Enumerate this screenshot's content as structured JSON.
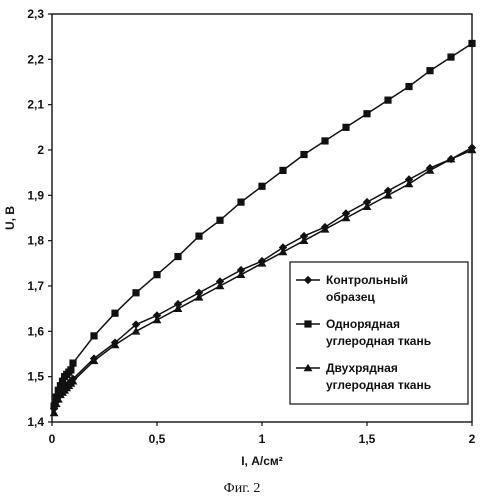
{
  "chart_data": {
    "type": "line",
    "xlabel": "I, А/см²",
    "ylabel": "U, В",
    "xlim": [
      0,
      2
    ],
    "ylim": [
      1.4,
      2.3
    ],
    "x_ticks": [
      "0",
      "0,5",
      "1",
      "1,5",
      "2"
    ],
    "x_tick_values": [
      0,
      0.5,
      1,
      1.5,
      2
    ],
    "y_ticks": [
      "1,4",
      "1,5",
      "1,6",
      "1,7",
      "1,8",
      "1,9",
      "2",
      "2,1",
      "2,2",
      "2,3"
    ],
    "y_tick_values": [
      1.4,
      1.5,
      1.6,
      1.7,
      1.8,
      1.9,
      2.0,
      2.1,
      2.2,
      2.3
    ],
    "grid": false,
    "legend_position": "lower-right",
    "series": [
      {
        "name_lines": [
          "Контрольный",
          "образец"
        ],
        "marker": "diamond",
        "x": [
          0.01,
          0.02,
          0.03,
          0.04,
          0.05,
          0.06,
          0.07,
          0.08,
          0.09,
          0.1,
          0.2,
          0.3,
          0.4,
          0.5,
          0.6,
          0.7,
          0.8,
          0.9,
          1.0,
          1.1,
          1.2,
          1.3,
          1.4,
          1.5,
          1.6,
          1.7,
          1.8,
          1.9,
          2.0
        ],
        "y": [
          1.43,
          1.445,
          1.455,
          1.465,
          1.47,
          1.475,
          1.48,
          1.485,
          1.49,
          1.495,
          1.54,
          1.575,
          1.615,
          1.635,
          1.66,
          1.685,
          1.71,
          1.735,
          1.755,
          1.785,
          1.81,
          1.83,
          1.86,
          1.885,
          1.91,
          1.935,
          1.96,
          1.98,
          2.005
        ]
      },
      {
        "name_lines": [
          "Однорядная",
          "углеродная ткань"
        ],
        "marker": "square",
        "x": [
          0.01,
          0.02,
          0.03,
          0.04,
          0.05,
          0.06,
          0.07,
          0.08,
          0.09,
          0.1,
          0.2,
          0.3,
          0.4,
          0.5,
          0.6,
          0.7,
          0.8,
          0.9,
          1.0,
          1.1,
          1.2,
          1.3,
          1.4,
          1.5,
          1.6,
          1.7,
          1.8,
          1.9,
          2.0
        ],
        "y": [
          1.435,
          1.455,
          1.47,
          1.48,
          1.49,
          1.5,
          1.505,
          1.51,
          1.515,
          1.53,
          1.59,
          1.64,
          1.685,
          1.725,
          1.765,
          1.81,
          1.845,
          1.885,
          1.92,
          1.955,
          1.99,
          2.02,
          2.05,
          2.08,
          2.11,
          2.14,
          2.175,
          2.205,
          2.235
        ]
      },
      {
        "name_lines": [
          "Двухрядная",
          "углеродная ткань"
        ],
        "marker": "triangle",
        "x": [
          0.01,
          0.02,
          0.03,
          0.04,
          0.05,
          0.06,
          0.07,
          0.08,
          0.09,
          0.1,
          0.2,
          0.3,
          0.4,
          0.5,
          0.6,
          0.7,
          0.8,
          0.9,
          1.0,
          1.1,
          1.2,
          1.3,
          1.4,
          1.5,
          1.6,
          1.7,
          1.8,
          1.9,
          2.0
        ],
        "y": [
          1.42,
          1.44,
          1.45,
          1.46,
          1.465,
          1.47,
          1.475,
          1.48,
          1.485,
          1.49,
          1.535,
          1.57,
          1.6,
          1.625,
          1.65,
          1.675,
          1.7,
          1.725,
          1.75,
          1.775,
          1.8,
          1.825,
          1.85,
          1.875,
          1.9,
          1.925,
          1.955,
          1.98,
          2.0
        ]
      }
    ]
  },
  "caption": "Фиг. 2"
}
